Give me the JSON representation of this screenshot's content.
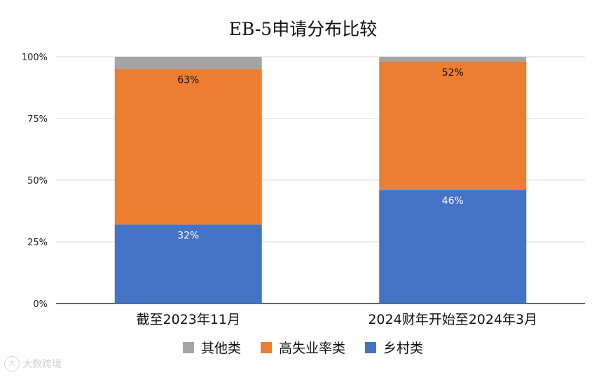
{
  "chart_data": {
    "type": "bar",
    "stacked": true,
    "title": "EB-5申请分布比较",
    "categories": [
      "截至2023年11月",
      "2024财年开始至2024年3月"
    ],
    "series": [
      {
        "name": "乡村类",
        "color": "#4472c4",
        "values": [
          32,
          46
        ],
        "labels": [
          "32%",
          "46%"
        ]
      },
      {
        "name": "高失业率类",
        "color": "#ed7d31",
        "values": [
          63,
          52
        ],
        "labels": [
          "63%",
          "52%"
        ]
      },
      {
        "name": "其他类",
        "color": "#a5a5a5",
        "values": [
          5,
          2
        ],
        "labels": [
          "",
          ""
        ]
      }
    ],
    "ylim": [
      0,
      100
    ],
    "yticks": [
      0,
      25,
      50,
      75,
      100
    ],
    "ytick_labels": [
      "0%",
      "25%",
      "50%",
      "75%",
      "100%"
    ],
    "grid": true,
    "legend_position": "bottom",
    "legend_order": [
      "其他类",
      "高失业率类",
      "乡村类"
    ]
  },
  "watermark": {
    "text": "大数跨境",
    "icon": "brand-logo-icon"
  }
}
